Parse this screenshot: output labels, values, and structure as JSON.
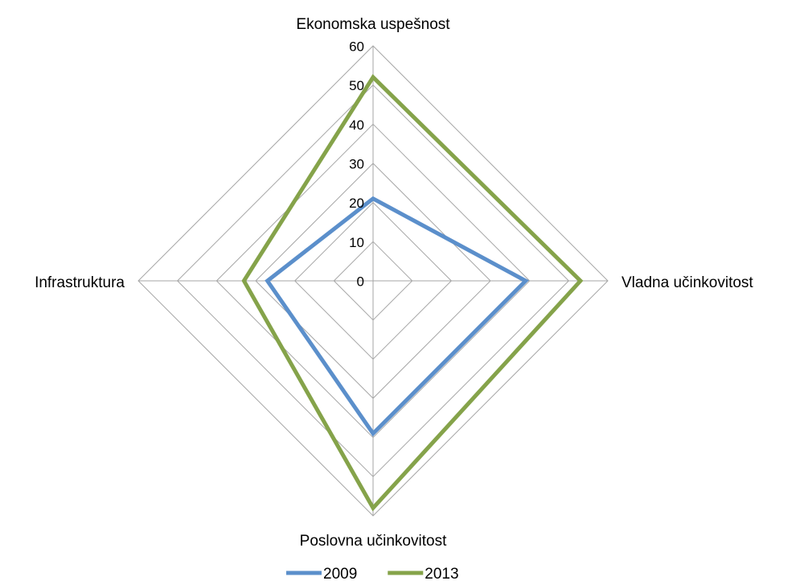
{
  "chart_data": {
    "type": "radar",
    "categories": [
      "Ekonomska uspešnost",
      "Vladna učinkovitost",
      "Poslovna učinkovitost",
      "Infrastruktura"
    ],
    "series": [
      {
        "name": "2009",
        "color": "#5b8fcb",
        "values": [
          21,
          39,
          39,
          27
        ]
      },
      {
        "name": "2013",
        "color": "#85a34a",
        "values": [
          52,
          53,
          58,
          33
        ]
      }
    ],
    "ylim": [
      0,
      60
    ],
    "yticks": [
      0,
      10,
      20,
      30,
      40,
      50,
      60
    ],
    "grid": true,
    "legend": "bottom"
  }
}
